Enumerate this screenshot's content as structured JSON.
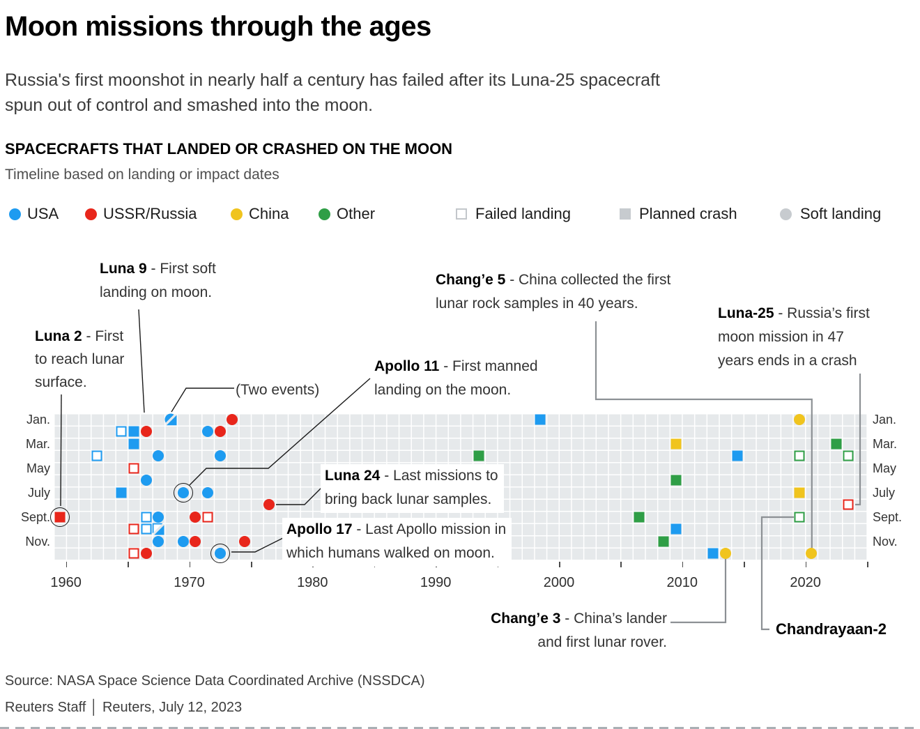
{
  "header": {
    "title": "Moon missions through the ages",
    "intro_line1": "Russia's first moonshot in nearly half a century has failed after its Luna-25 spacecraft",
    "intro_line2": "spun out of control and smashed into the moon.",
    "section_title": "SPACECRAFTS THAT LANDED OR CRASHED ON THE MOON",
    "subtitle": "Timeline based on landing or impact dates"
  },
  "legend": {
    "country_colors": {
      "usa": "#1e9bf0",
      "ussr_russia": "#e8261b",
      "china": "#f0c41e",
      "other": "#2f9e46"
    },
    "neutral_color": "#c7cbcf",
    "countries": [
      {
        "key": "usa",
        "label": "USA"
      },
      {
        "key": "ussr_russia",
        "label": "USSR/Russia"
      },
      {
        "key": "china",
        "label": "China"
      },
      {
        "key": "other",
        "label": "Other"
      }
    ],
    "types": [
      {
        "key": "fail",
        "label": "Failed landing"
      },
      {
        "key": "crash",
        "label": "Planned crash"
      },
      {
        "key": "soft",
        "label": "Soft landing"
      }
    ]
  },
  "chart_data": {
    "type": "scatter",
    "title": "SPACECRAFTS THAT LANDED OR CRASHED ON THE MOON",
    "x_axis": {
      "unit": "year",
      "min": 1959,
      "max": 2024,
      "label_years": [
        1960,
        1970,
        1980,
        1990,
        2000,
        2010,
        2020
      ],
      "tick_first": 1960,
      "tick_last": 2025,
      "tick_step": 5
    },
    "y_axis": {
      "unit": "month",
      "rows": 12,
      "visible_months": [
        "Jan.",
        "Mar.",
        "May",
        "July",
        "Sept.",
        "Nov."
      ]
    },
    "marker_legend": {
      "soft": "soft landing = filled circle",
      "crash": "planned crash = filled square",
      "fail": "failed landing = open square",
      "two_circle_square": "two events: soft landing + planned crash",
      "two_open_fill": "two events: failed landing + planned crash"
    },
    "points": [
      {
        "year": 1959,
        "month": 9,
        "country": "ussr_russia",
        "type": "crash",
        "label": "Luna 2",
        "circled": true
      },
      {
        "year": 1962,
        "month": 4,
        "country": "usa",
        "type": "fail"
      },
      {
        "year": 1964,
        "month": 2,
        "country": "usa",
        "type": "fail"
      },
      {
        "year": 1964,
        "month": 7,
        "country": "usa",
        "type": "crash"
      },
      {
        "year": 1965,
        "month": 2,
        "country": "usa",
        "type": "crash"
      },
      {
        "year": 1965,
        "month": 3,
        "country": "usa",
        "type": "crash"
      },
      {
        "year": 1965,
        "month": 5,
        "country": "ussr_russia",
        "type": "fail"
      },
      {
        "year": 1965,
        "month": 10,
        "country": "ussr_russia",
        "type": "fail"
      },
      {
        "year": 1965,
        "month": 12,
        "country": "ussr_russia",
        "type": "fail"
      },
      {
        "year": 1966,
        "month": 2,
        "country": "ussr_russia",
        "type": "soft",
        "label": "Luna 9"
      },
      {
        "year": 1966,
        "month": 6,
        "country": "usa",
        "type": "soft"
      },
      {
        "year": 1966,
        "month": 9,
        "country": "usa",
        "type": "fail"
      },
      {
        "year": 1966,
        "month": 10,
        "country": "usa",
        "type": "fail"
      },
      {
        "year": 1966,
        "month": 12,
        "country": "ussr_russia",
        "type": "soft"
      },
      {
        "year": 1967,
        "month": 4,
        "country": "usa",
        "type": "soft"
      },
      {
        "year": 1967,
        "month": 9,
        "country": "usa",
        "type": "soft"
      },
      {
        "year": 1967,
        "month": 10,
        "country": "usa",
        "type": "two_open_fill"
      },
      {
        "year": 1967,
        "month": 11,
        "country": "usa",
        "type": "soft"
      },
      {
        "year": 1968,
        "month": 1,
        "country": "usa",
        "type": "two_circle_square",
        "label": "(Two events)"
      },
      {
        "year": 1969,
        "month": 7,
        "country": "usa",
        "type": "soft",
        "label": "Apollo 11",
        "circled": true
      },
      {
        "year": 1969,
        "month": 11,
        "country": "usa",
        "type": "soft"
      },
      {
        "year": 1970,
        "month": 9,
        "country": "ussr_russia",
        "type": "soft"
      },
      {
        "year": 1970,
        "month": 11,
        "country": "ussr_russia",
        "type": "soft"
      },
      {
        "year": 1971,
        "month": 2,
        "country": "usa",
        "type": "soft"
      },
      {
        "year": 1971,
        "month": 7,
        "country": "usa",
        "type": "soft"
      },
      {
        "year": 1971,
        "month": 9,
        "country": "ussr_russia",
        "type": "fail"
      },
      {
        "year": 1972,
        "month": 2,
        "country": "ussr_russia",
        "type": "soft"
      },
      {
        "year": 1972,
        "month": 4,
        "country": "usa",
        "type": "soft"
      },
      {
        "year": 1972,
        "month": 12,
        "country": "usa",
        "type": "soft",
        "label": "Apollo 17",
        "circled": true
      },
      {
        "year": 1973,
        "month": 1,
        "country": "ussr_russia",
        "type": "soft"
      },
      {
        "year": 1974,
        "month": 11,
        "country": "ussr_russia",
        "type": "soft"
      },
      {
        "year": 1976,
        "month": 8,
        "country": "ussr_russia",
        "type": "soft",
        "label": "Luna 24"
      },
      {
        "year": 1993,
        "month": 4,
        "country": "other",
        "type": "crash"
      },
      {
        "year": 1998,
        "month": 1,
        "country": "usa",
        "type": "crash"
      },
      {
        "year": 2006,
        "month": 9,
        "country": "other",
        "type": "crash"
      },
      {
        "year": 2008,
        "month": 11,
        "country": "other",
        "type": "crash"
      },
      {
        "year": 2009,
        "month": 3,
        "country": "china",
        "type": "crash"
      },
      {
        "year": 2009,
        "month": 6,
        "country": "other",
        "type": "crash"
      },
      {
        "year": 2009,
        "month": 10,
        "country": "usa",
        "type": "crash"
      },
      {
        "year": 2012,
        "month": 12,
        "country": "usa",
        "type": "crash"
      },
      {
        "year": 2013,
        "month": 12,
        "country": "china",
        "type": "soft",
        "label": "Chang’e 3"
      },
      {
        "year": 2014,
        "month": 4,
        "country": "usa",
        "type": "crash"
      },
      {
        "year": 2019,
        "month": 1,
        "country": "china",
        "type": "soft"
      },
      {
        "year": 2019,
        "month": 4,
        "country": "other",
        "type": "fail"
      },
      {
        "year": 2019,
        "month": 7,
        "country": "china",
        "type": "crash"
      },
      {
        "year": 2019,
        "month": 9,
        "country": "other",
        "type": "fail",
        "label": "Chandrayaan-2"
      },
      {
        "year": 2020,
        "month": 12,
        "country": "china",
        "type": "soft",
        "label": "Chang’e 5"
      },
      {
        "year": 2022,
        "month": 3,
        "country": "other",
        "type": "crash"
      },
      {
        "year": 2023,
        "month": 4,
        "country": "other",
        "type": "fail"
      },
      {
        "year": 2023,
        "month": 8,
        "country": "ussr_russia",
        "type": "fail",
        "label": "Luna-25"
      }
    ]
  },
  "annotations": {
    "luna9": {
      "bold": "Luna 9",
      "line1": " - First soft",
      "line2": "landing on moon."
    },
    "luna2": {
      "bold": "Luna 2",
      "line1": " - First",
      "line2": "to reach lunar",
      "line3": "surface."
    },
    "two_events": {
      "text": "(Two events)"
    },
    "apollo11": {
      "bold": "Apollo 11",
      "line1": " - First manned",
      "line2": "landing on the moon."
    },
    "luna24": {
      "bold": "Luna 24",
      "line1": " - Last missions to",
      "line2": "bring back lunar samples."
    },
    "apollo17": {
      "bold": "Apollo 17",
      "line1": " - Last Apollo mission in",
      "line2": "which humans walked on moon."
    },
    "change5": {
      "bold": "Chang’e 5",
      "line1": " - China collected the first",
      "line2": "lunar rock samples in 40 years."
    },
    "luna25": {
      "bold": "Luna-25",
      "line1": " - Russia’s first",
      "line2": "moon mission in 47",
      "line3": "years ends in a crash"
    },
    "change3": {
      "bold": "Chang’e 3",
      "line1": " - China’s lander",
      "line2": "and first lunar rover."
    },
    "chandrayaan2": {
      "text": "Chandrayaan-2"
    }
  },
  "footer": {
    "source": "Source: NASA Space Science Data Coordinated Archive (NSSDCA)",
    "byline": "Reuters Staff │ Reuters, July 12, 2023"
  }
}
